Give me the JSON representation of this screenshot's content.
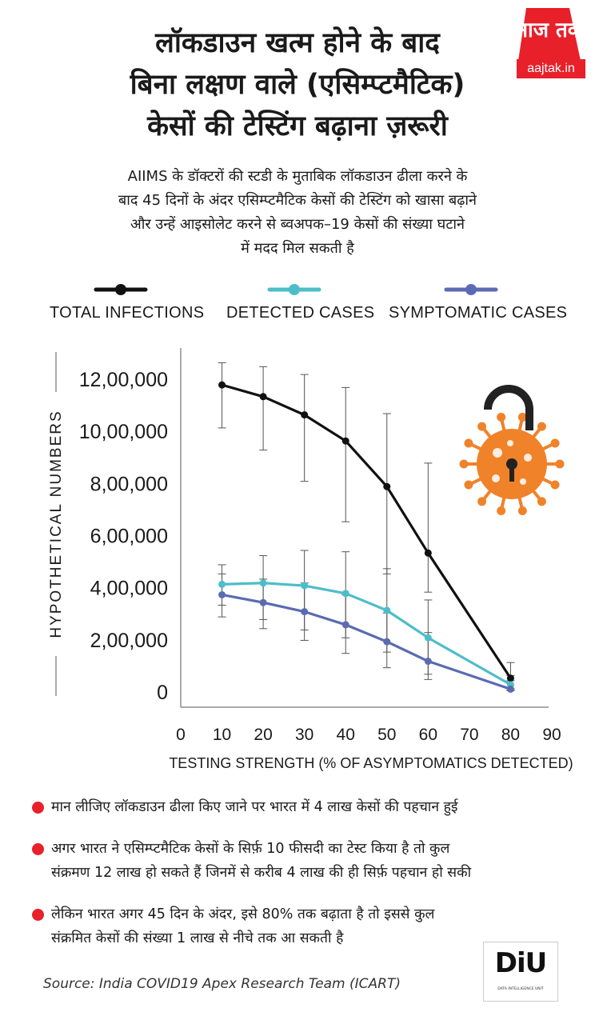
{
  "header": {
    "title_lines": [
      "लॉकडाउन खत्म होने के बाद",
      "बिना लक्षण वाले (एसिम्प्टमैटिक)",
      "केसों की टेस्टिंग बढ़ाना ज़रूरी"
    ],
    "logo_text": "आज तक",
    "logo_site": "aajtak.in"
  },
  "intro_lines": [
    "AIIMS के डॉक्टरों की स्टडी के मुताबिक लॉकडाउन ढीला करने के",
    "बाद 45 दिनों के अंदर एसिम्प्टमैटिक केसों की टेस्टिंग को खासा बढ़ाने",
    "और उन्हें आइसोलेट करने से ब्वअपक–19 केसों की संख्या घटाने",
    "में मदद मिल सकती है"
  ],
  "colors": {
    "total": "#111111",
    "detected": "#4dbdca",
    "symptomatic": "#5b6bb3",
    "virus": "#f0822a",
    "bullet": "#e62129",
    "logo_red": "#e8202a"
  },
  "icons": {
    "virus_lock": "virus-with-open-padlock-icon"
  },
  "chart_data": {
    "type": "line",
    "x": [
      10,
      20,
      30,
      40,
      50,
      60,
      80
    ],
    "xlim": [
      0,
      90
    ],
    "x_ticks": [
      "0",
      "10",
      "20",
      "30",
      "40",
      "50",
      "60",
      "70",
      "80",
      "90"
    ],
    "xlabel": "TESTING STRENGTH (% OF ASYMPTOMATICS DETECTED)",
    "ylabel": "HYPOTHETICAL NUMBERS",
    "ylim": [
      0,
      1200000
    ],
    "y_ticks": [
      "0",
      "2,00,000",
      "4,00,000",
      "6,00,000",
      "8,00,000",
      "10,00,000",
      "12,00,000"
    ],
    "y_tick_values": [
      0,
      200000,
      400000,
      600000,
      800000,
      1000000,
      1200000
    ],
    "grid": false,
    "error_bars": true,
    "legend_position": "top",
    "series": [
      {
        "name": "TOTAL INFECTIONS",
        "values": [
          1175000,
          1130000,
          1060000,
          960000,
          785000,
          530000,
          50000
        ],
        "err_low": [
          1010000,
          925000,
          805000,
          650000,
          450000,
          380000,
          10000
        ],
        "err_high": [
          1260000,
          1245000,
          1215000,
          1165000,
          1065000,
          875000,
          110000
        ]
      },
      {
        "name": "DETECTED CASES",
        "values": [
          410000,
          415000,
          405000,
          375000,
          310000,
          205000,
          25000
        ],
        "err_low": [
          330000,
          275000,
          235000,
          205000,
          150000,
          65000,
          5000
        ],
        "err_high": [
          485000,
          520000,
          540000,
          535000,
          470000,
          350000,
          60000
        ]
      },
      {
        "name": "SYMPTOMATIC CASES",
        "values": [
          370000,
          340000,
          305000,
          255000,
          190000,
          115000,
          8000
        ],
        "err_low": [
          285000,
          240000,
          195000,
          145000,
          90000,
          45000,
          2000
        ],
        "err_high": [
          450000,
          430000,
          415000,
          370000,
          300000,
          225000,
          40000
        ]
      }
    ]
  },
  "bullets": [
    [
      "मान लीजिए लॉकडाउन ढीला किए जाने पर भारत में 4 लाख केसों की पहचान हुई"
    ],
    [
      "अगर भारत ने एसिम्प्टमैटिक केसों के सिर्फ़ 10 फीसदी का टेस्ट किया है तो कुल",
      "संक्रमण 12 लाख हो सकते हैं जिनमें से करीब 4 लाख की ही सिर्फ़ पहचान हो सकी"
    ],
    [
      "लेकिन भारत अगर 45 दिन के अंदर, इसे 80% तक बढ़ाता है तो इससे कुल",
      "संक्रमित केसों की संख्या 1 लाख से नीचे तक आ सकती है"
    ]
  ],
  "footer": {
    "source": "Source: India COVID19 Apex Research Team (ICART)",
    "diu_logo": "DiU",
    "diu_sub": "DATA INTELLIGENCE UNIT"
  }
}
